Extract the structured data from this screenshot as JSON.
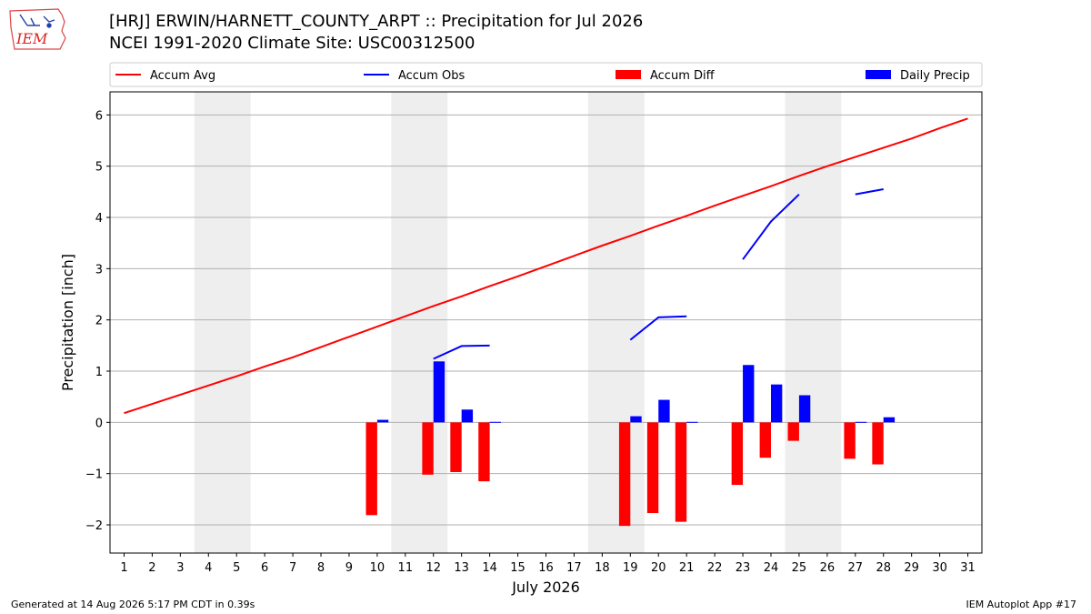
{
  "header": {
    "title_line1": "[HRJ] ERWIN/HARNETT_COUNTY_ARPT :: Precipitation for Jul 2026",
    "title_line2": "NCEI 1991-2020 Climate Site: USC00312500",
    "logo_text": "IEM"
  },
  "footer": {
    "generated": "Generated at 14 Aug 2026 5:17 PM CDT in 0.39s",
    "app": "IEM Autoplot App #17"
  },
  "colors": {
    "accum_avg": "#ff0000",
    "accum_obs": "#0000ff",
    "accum_diff": "#ff0000",
    "daily_precip": "#0000ff",
    "weekend_shade": "#eeeeee",
    "grid": "#b0b0b0"
  },
  "chart_data": {
    "type": "bar",
    "title": "[HRJ] ERWIN/HARNETT_COUNTY_ARPT :: Precipitation for Jul 2026",
    "subtitle": "NCEI 1991-2020 Climate Site: USC00312500",
    "xlabel": "July 2026",
    "ylabel": "Precipitation [inch]",
    "xlim": [
      0.5,
      31.5
    ],
    "ylim": [
      -2.55,
      6.45
    ],
    "yticks": [
      -2,
      -1,
      0,
      1,
      2,
      3,
      4,
      5,
      6
    ],
    "ytick_labels": [
      "−2",
      "−1",
      "0",
      "1",
      "2",
      "3",
      "4",
      "5",
      "6"
    ],
    "days": [
      1,
      2,
      3,
      4,
      5,
      6,
      7,
      8,
      9,
      10,
      11,
      12,
      13,
      14,
      15,
      16,
      17,
      18,
      19,
      20,
      21,
      22,
      23,
      24,
      25,
      26,
      27,
      28,
      29,
      30,
      31
    ],
    "grid": "horizontal",
    "legend_position": "top",
    "shaded_days": [
      [
        4,
        5
      ],
      [
        11,
        12
      ],
      [
        18,
        19
      ],
      [
        25,
        26
      ]
    ],
    "series": [
      {
        "name": "Accum Avg",
        "type": "line",
        "x": [
          1,
          2,
          3,
          4,
          5,
          6,
          7,
          8,
          9,
          10,
          11,
          12,
          13,
          14,
          15,
          16,
          17,
          18,
          19,
          20,
          21,
          22,
          23,
          24,
          25,
          26,
          27,
          28,
          29,
          30,
          31
        ],
        "values": [
          0.18,
          0.36,
          0.54,
          0.72,
          0.9,
          1.09,
          1.27,
          1.47,
          1.67,
          1.87,
          2.07,
          2.27,
          2.46,
          2.66,
          2.85,
          3.05,
          3.25,
          3.45,
          3.64,
          3.84,
          4.03,
          4.23,
          4.42,
          4.61,
          4.81,
          5.0,
          5.18,
          5.36,
          5.54,
          5.74,
          5.93
        ]
      },
      {
        "name": "Accum Obs",
        "type": "line",
        "segments": [
          {
            "x": [
              12,
              13,
              14
            ],
            "values": [
              1.24,
              1.49,
              1.5
            ]
          },
          {
            "x": [
              19,
              20,
              21
            ],
            "values": [
              1.61,
              2.05,
              2.07
            ]
          },
          {
            "x": [
              23,
              24,
              25
            ],
            "values": [
              3.18,
              3.92,
              4.45
            ]
          },
          {
            "x": [
              27,
              28
            ],
            "values": [
              4.45,
              4.55
            ]
          }
        ]
      },
      {
        "name": "Accum Diff",
        "type": "bar",
        "x": [
          10,
          12,
          13,
          14,
          19,
          20,
          21,
          23,
          24,
          25,
          27,
          28
        ],
        "values": [
          -1.81,
          -1.02,
          -0.97,
          -1.15,
          -2.02,
          -1.77,
          -1.94,
          -1.22,
          -0.69,
          -0.36,
          -0.71,
          -0.82
        ]
      },
      {
        "name": "Daily Precip",
        "type": "bar",
        "x": [
          10,
          12,
          13,
          14,
          19,
          20,
          21,
          23,
          24,
          25,
          27,
          28
        ],
        "values": [
          0.05,
          1.19,
          0.25,
          0.01,
          0.12,
          0.44,
          0.01,
          1.12,
          0.74,
          0.53,
          0.01,
          0.1
        ]
      }
    ]
  }
}
